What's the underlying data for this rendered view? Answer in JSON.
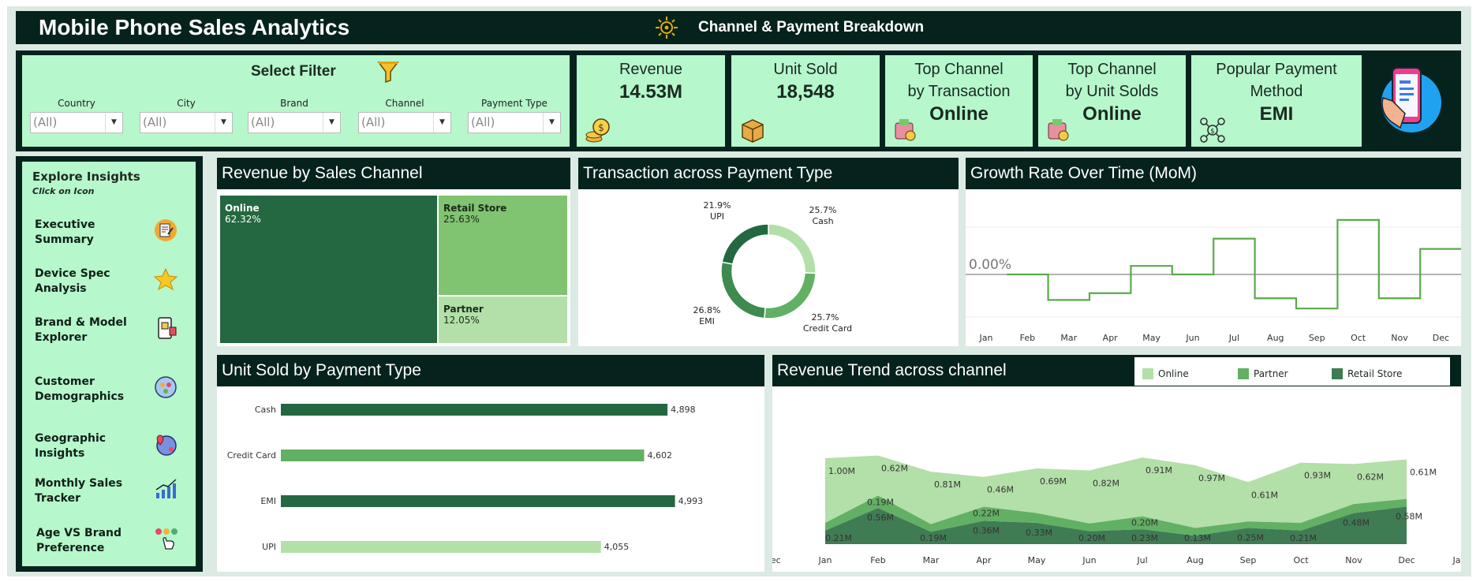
{
  "header": {
    "title": "Mobile Phone Sales Analytics",
    "subtitle": "Channel & Payment Breakdown"
  },
  "filters": {
    "title": "Select Filter",
    "items": [
      {
        "label": "Country",
        "value": "(All)"
      },
      {
        "label": "City",
        "value": "(All)"
      },
      {
        "label": "Brand",
        "value": "(All)"
      },
      {
        "label": "Channel",
        "value": "(All)"
      },
      {
        "label": "Payment Type",
        "value": "(All)"
      }
    ]
  },
  "kpis": {
    "revenue": {
      "title": "Revenue",
      "value": "14.53M"
    },
    "units": {
      "title": "Unit Sold",
      "value": "18,548"
    },
    "top_channel_txn": {
      "title1": "Top Channel",
      "title2": "by Transaction",
      "value": "Online"
    },
    "top_channel_units": {
      "title1": "Top Channel",
      "title2": "by Unit Solds",
      "value": "Online"
    },
    "payment": {
      "title1": "Popular Payment",
      "title2": "Method",
      "value": "EMI"
    }
  },
  "nav": {
    "title": "Explore Insights",
    "subtitle": "Click on Icon",
    "items": [
      {
        "l1": "Executive",
        "l2": "Summary",
        "icon": "report-icon"
      },
      {
        "l1": "Device Spec",
        "l2": "Analysis",
        "icon": "star-icon"
      },
      {
        "l1": "Brand & Model",
        "l2": "Explorer",
        "icon": "phone-icon"
      },
      {
        "l1": "Customer",
        "l2": "Demographics",
        "icon": "people-icon"
      },
      {
        "l1": "Geographic",
        "l2": "Insights",
        "icon": "globe-pin-icon"
      },
      {
        "l1": "Monthly Sales",
        "l2": "Tracker",
        "icon": "growth-chart-icon"
      },
      {
        "l1": "Age VS Brand",
        "l2": "Preference",
        "icon": "tap-icon"
      }
    ]
  },
  "colors": {
    "dark": "#06221d",
    "mint": "#b6f7cc",
    "green_dark": "#236840",
    "green_mid": "#62b064",
    "green_light": "#b3dfa8",
    "green_med2": "#80c371"
  },
  "charts": {
    "treemap": {
      "title": "Revenue by Sales Channel",
      "type": "treemap",
      "items": [
        {
          "name": "Online",
          "pct": "62.32%",
          "value": 62.32
        },
        {
          "name": "Retail Store",
          "pct": "25.63%",
          "value": 25.63
        },
        {
          "name": "Partner",
          "pct": "12.05%",
          "value": 12.05
        }
      ]
    },
    "donut": {
      "title": "Transaction across Payment Type",
      "type": "pie",
      "slices": [
        {
          "name": "Cash",
          "pct": "25.7%",
          "value": 25.7
        },
        {
          "name": "Credit Card",
          "pct": "25.7%",
          "value": 25.7
        },
        {
          "name": "EMI",
          "pct": "26.8%",
          "value": 26.8
        },
        {
          "name": "UPI",
          "pct": "21.9%",
          "value": 21.9
        }
      ]
    },
    "growth": {
      "title": "Growth Rate Over Time (MoM)",
      "type": "line",
      "zero_label": "0.00%",
      "categories": [
        "Jan",
        "Feb",
        "Mar",
        "Apr",
        "May",
        "Jun",
        "Jul",
        "Aug",
        "Sep",
        "Oct",
        "Nov",
        "Dec"
      ],
      "values": [
        null,
        0.0,
        -0.3,
        -0.22,
        0.1,
        0.0,
        0.42,
        -0.28,
        -0.4,
        0.64,
        -0.28,
        0.3
      ]
    },
    "bars": {
      "title": "Unit Sold by Payment Type",
      "type": "bar",
      "categories": [
        "Cash",
        "Credit Card",
        "EMI",
        "UPI"
      ],
      "values": [
        4898,
        4602,
        4993,
        4055
      ],
      "labels": [
        "4,898",
        "4,602",
        "4,993",
        "4,055"
      ]
    },
    "area": {
      "title": "Revenue Trend across channel",
      "type": "area",
      "legend": [
        "Online",
        "Partner",
        "Retail Store"
      ],
      "x_ticks": [
        "Dec",
        "Jan",
        "Feb",
        "Mar",
        "Apr",
        "May",
        "Jun",
        "Jul",
        "Aug",
        "Sep",
        "Oct",
        "Nov",
        "Dec",
        "Jan"
      ],
      "categories": [
        "Jan",
        "Feb",
        "Mar",
        "Apr",
        "May",
        "Jun",
        "Jul",
        "Aug",
        "Sep",
        "Oct",
        "Nov",
        "Dec"
      ],
      "series": [
        {
          "name": "Retail Store",
          "values": [
            0.21,
            0.56,
            0.19,
            0.36,
            0.33,
            0.2,
            0.23,
            0.13,
            0.25,
            0.21,
            0.48,
            0.58
          ],
          "labels": [
            "0.21M",
            "0.56M",
            "0.19M",
            "0.36M",
            "0.33M",
            "0.20M",
            "0.23M",
            "0.13M",
            "0.25M",
            "0.21M",
            "0.48M",
            "0.58M"
          ]
        },
        {
          "name": "Partner",
          "values": [
            0.12,
            0.19,
            0.12,
            0.22,
            0.15,
            0.12,
            0.2,
            0.12,
            0.1,
            0.12,
            0.14,
            0.12
          ],
          "labels": [
            "",
            "0.19M",
            "",
            "0.22M",
            "",
            "",
            "0.20M",
            "",
            "",
            "",
            "",
            ""
          ]
        },
        {
          "name": "Online",
          "values": [
            1.0,
            0.62,
            0.81,
            0.46,
            0.69,
            0.82,
            0.91,
            0.97,
            0.61,
            0.93,
            0.62,
            0.61
          ],
          "labels": [
            "1.00M",
            "0.62M",
            "0.81M",
            "0.46M",
            "0.69M",
            "0.82M",
            "0.91M",
            "0.97M",
            "0.61M",
            "0.93M",
            "0.62M",
            "0.61M"
          ]
        }
      ]
    }
  }
}
